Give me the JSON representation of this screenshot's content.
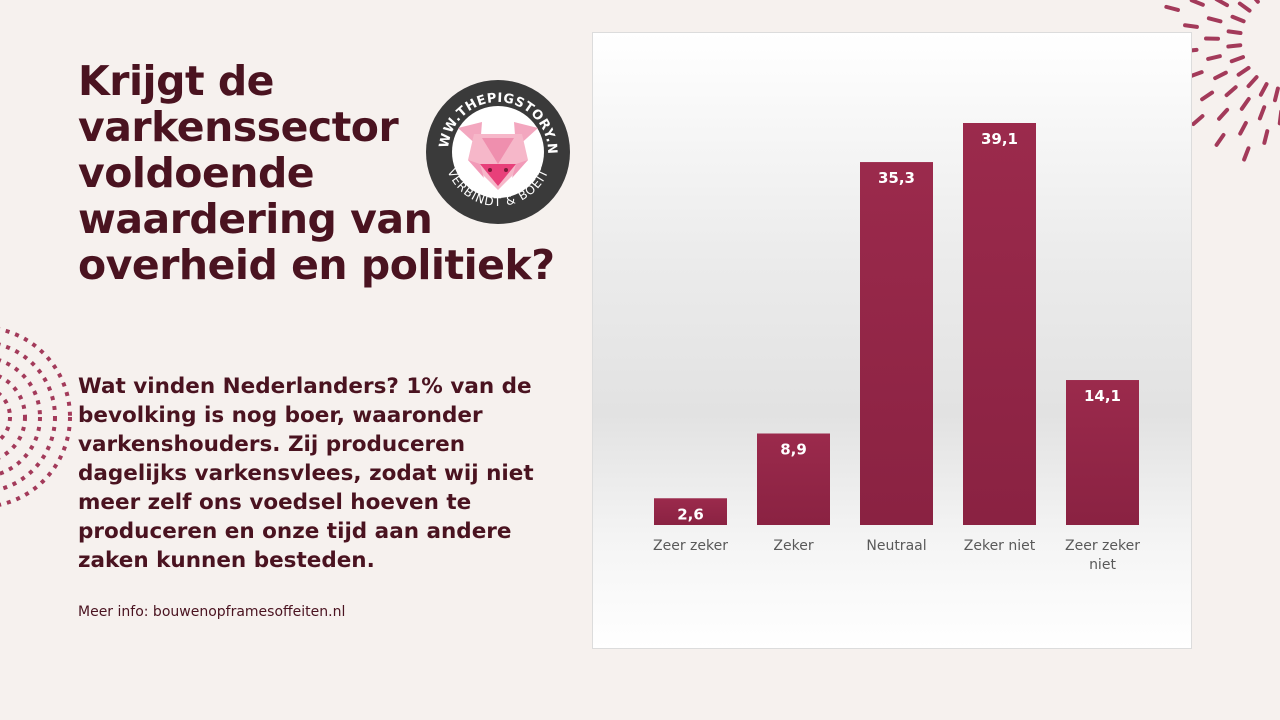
{
  "title": "Krijgt de\nvarkenssector\nvoldoende\nwaardering van\noverheid en politiek?",
  "body_text": "Wat vinden Nederlanders? 1% van de\nbevolking is nog boer, waaronder\nvarkenshouders. Zij produceren\ndagelijks varkensvlees, zodat wij niet\nmeer zelf ons voedsel hoeven te\nproduceren en onze tijd aan andere\nzaken kunnen besteden.",
  "more_info": "Meer info: bouwenopframesoffeiten.nl",
  "logo": {
    "top_text": "WWW.THEPIGSTORY.NL",
    "bottom_text": "VERBINDT & BOEIT",
    "icon": "pig-head-icon"
  },
  "colors": {
    "background": "#f6f1ee",
    "text": "#4a1320",
    "bar": "#9b2a4c",
    "accent": "#a33a5a"
  },
  "chart_data": {
    "type": "bar",
    "title": "",
    "xlabel": "",
    "ylabel": "",
    "categories": [
      "Zeer zeker",
      "Zeker",
      "Neutraal",
      "Zeker niet",
      "Zeer zeker\nniet"
    ],
    "values": [
      2.6,
      8.9,
      35.3,
      39.1,
      14.1
    ],
    "data_labels": [
      "2,6",
      "8,9",
      "35,3",
      "39,1",
      "14,1"
    ],
    "ylim": [
      0,
      39.1
    ],
    "grid": false,
    "legend": false
  }
}
